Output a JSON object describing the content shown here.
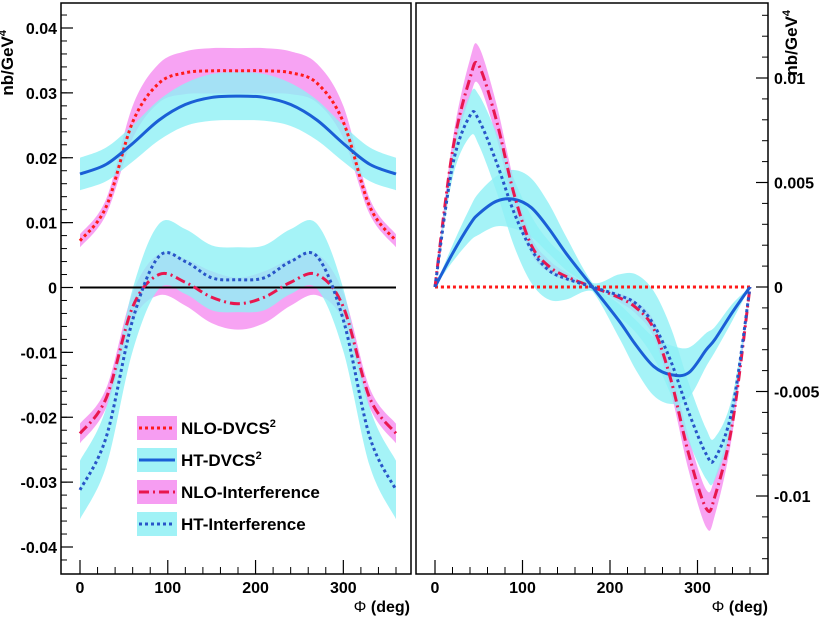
{
  "chart_data": [
    {
      "type": "line",
      "panel": "left",
      "xlabel_symbol": "Φ",
      "xlabel": "(deg)",
      "ylabel": "nb/GeV",
      "ylabel_sup": "4",
      "xlim": [
        -10,
        370
      ],
      "ylim": [
        -0.0443,
        0.0441
      ],
      "x_ticks": [
        "0",
        "100",
        "200",
        "300"
      ],
      "x_tick_values": [
        0,
        100,
        200,
        300
      ],
      "y_ticks": [
        "-0.04",
        "-0.03",
        "-0.02",
        "-0.01",
        "0",
        "0.01",
        "0.02",
        "0.03",
        "0.04"
      ],
      "y_tick_values": [
        -0.04,
        -0.03,
        -0.02,
        -0.01,
        0,
        0.01,
        0.02,
        0.03,
        0.04
      ],
      "y_axis_side": "left",
      "zero_line": true,
      "x": [
        0,
        30,
        60,
        90,
        120,
        150,
        180,
        210,
        240,
        270,
        300,
        330,
        360
      ],
      "series": [
        {
          "name": "NLO-DVCS",
          "name_sup": "2",
          "color": "#ff1a1a",
          "style": "dotted",
          "band_color": "#f58cf0",
          "values": [
            0.0072,
            0.0125,
            0.0255,
            0.0315,
            0.0331,
            0.0334,
            0.0334,
            0.0334,
            0.0331,
            0.0315,
            0.0255,
            0.0125,
            0.0072
          ],
          "band": [
            0.001,
            0.0012,
            0.0025,
            0.003,
            0.0033,
            0.0035,
            0.0035,
            0.0035,
            0.0033,
            0.003,
            0.0025,
            0.0012,
            0.001
          ]
        },
        {
          "name": "HT-DVCS",
          "name_sup": "2",
          "color": "#1a5fd6",
          "style": "solid",
          "band_color": "#8ff0f5",
          "values": [
            0.0175,
            0.019,
            0.0222,
            0.0258,
            0.0282,
            0.0293,
            0.0295,
            0.0293,
            0.0282,
            0.0258,
            0.0222,
            0.019,
            0.0175
          ],
          "band": [
            0.0025,
            0.0026,
            0.0028,
            0.0031,
            0.0033,
            0.0036,
            0.0037,
            0.0036,
            0.0033,
            0.0031,
            0.0028,
            0.0026,
            0.0025
          ]
        },
        {
          "name": "NLO-Interference",
          "color": "#e8174f",
          "style": "dash-dot",
          "band_color": "#f58cf0",
          "values": [
            -0.0225,
            -0.017,
            -0.003,
            0.002,
            0.0008,
            -0.0015,
            -0.0025,
            -0.0015,
            0.0008,
            0.002,
            -0.003,
            -0.017,
            -0.0225
          ],
          "band": [
            0.0015,
            0.0015,
            0.0022,
            0.0032,
            0.0036,
            0.004,
            0.004,
            0.004,
            0.0036,
            0.0032,
            0.0022,
            0.0015,
            0.0015
          ]
        },
        {
          "name": "HT-Interference",
          "color": "#2855c8",
          "style": "dotted",
          "band_color": "#8ff0f5",
          "values": [
            -0.0312,
            -0.023,
            -0.005,
            0.0048,
            0.004,
            0.0015,
            0.0012,
            0.0015,
            0.004,
            0.0048,
            -0.005,
            -0.023,
            -0.0312
          ],
          "band": [
            0.0045,
            0.0045,
            0.0048,
            0.005,
            0.005,
            0.005,
            0.005,
            0.005,
            0.005,
            0.005,
            0.0048,
            0.0045,
            0.0045
          ]
        }
      ],
      "legend": {
        "placement": "bottom-center",
        "entries": [
          {
            "name": "NLO-DVCS",
            "sup": "2"
          },
          {
            "name": "HT-DVCS",
            "sup": "2"
          },
          {
            "name": "NLO-Interference",
            "sup": ""
          },
          {
            "name": "HT-Interference",
            "sup": ""
          }
        ]
      }
    },
    {
      "type": "line",
      "panel": "right",
      "xlabel_symbol": "Φ",
      "xlabel": "(deg)",
      "ylabel": "nb/GeV",
      "ylabel_sup": "4",
      "xlim": [
        -10,
        370
      ],
      "ylim": [
        -0.0136,
        0.0136
      ],
      "x_ticks": [
        "0",
        "100",
        "200",
        "300"
      ],
      "x_tick_values": [
        0,
        100,
        200,
        300
      ],
      "y_ticks": [
        "-0.01",
        "-0.005",
        "0",
        "0.005",
        "0.01"
      ],
      "y_tick_values": [
        -0.01,
        -0.005,
        0,
        0.005,
        0.01
      ],
      "y_axis_side": "right",
      "x": [
        0,
        20,
        40,
        50,
        70,
        90,
        110,
        130,
        150,
        180,
        210,
        230,
        250,
        270,
        290,
        310,
        320,
        340,
        360
      ],
      "series": [
        {
          "name": "NLO-DVCS",
          "color": "#ff1a1a",
          "style": "dotted",
          "values": [
            0,
            0,
            0,
            0,
            0,
            0,
            0,
            0,
            0,
            0,
            0,
            0,
            0,
            0,
            0,
            0,
            0,
            0,
            0
          ]
        },
        {
          "name": "HT-DVCS",
          "color": "#1a5fd6",
          "style": "solid",
          "band_color": "#8ff0f5",
          "values": [
            0,
            0.0016,
            0.003,
            0.0035,
            0.0041,
            0.0042,
            0.0038,
            0.0028,
            0.0016,
            0,
            -0.0016,
            -0.0028,
            -0.0038,
            -0.0042,
            -0.0041,
            -0.003,
            -0.0025,
            -0.0012,
            0
          ],
          "band": [
            0,
            0.0004,
            0.0008,
            0.001,
            0.0012,
            0.0014,
            0.0014,
            0.0012,
            0.0008,
            0.0002,
            0.0008,
            0.0012,
            0.0014,
            0.0014,
            0.0012,
            0.0008,
            0.0006,
            0.0004,
            0
          ]
        },
        {
          "name": "NLO-Interference",
          "color": "#e8174f",
          "style": "dash-dot",
          "band_color": "#f58cf0",
          "values": [
            0,
            0.0065,
            0.01,
            0.0106,
            0.008,
            0.0045,
            0.002,
            0.001,
            0.0005,
            0,
            -0.0005,
            -0.001,
            -0.002,
            -0.0045,
            -0.008,
            -0.0106,
            -0.01,
            -0.0065,
            0
          ],
          "band": [
            0,
            0.0005,
            0.0009,
            0.0009,
            0.0008,
            0.0006,
            0.0004,
            0.0003,
            0.0002,
            0,
            0.0002,
            0.0003,
            0.0004,
            0.0006,
            0.0008,
            0.0009,
            0.0009,
            0.0005,
            0
          ]
        },
        {
          "name": "HT-Interference",
          "color": "#2855c8",
          "style": "dotted",
          "band_color": "#8ff0f5",
          "values": [
            0,
            0.0058,
            0.0082,
            0.008,
            0.006,
            0.0036,
            0.0018,
            0.0008,
            0.0004,
            0,
            -0.0004,
            -0.0008,
            -0.0018,
            -0.0036,
            -0.006,
            -0.008,
            -0.0082,
            -0.0058,
            0
          ],
          "band": [
            0,
            0.0006,
            0.001,
            0.0012,
            0.0014,
            0.0016,
            0.0016,
            0.0014,
            0.001,
            0.0002,
            0.001,
            0.0014,
            0.0016,
            0.0016,
            0.0014,
            0.0012,
            0.001,
            0.0006,
            0
          ]
        }
      ]
    }
  ]
}
